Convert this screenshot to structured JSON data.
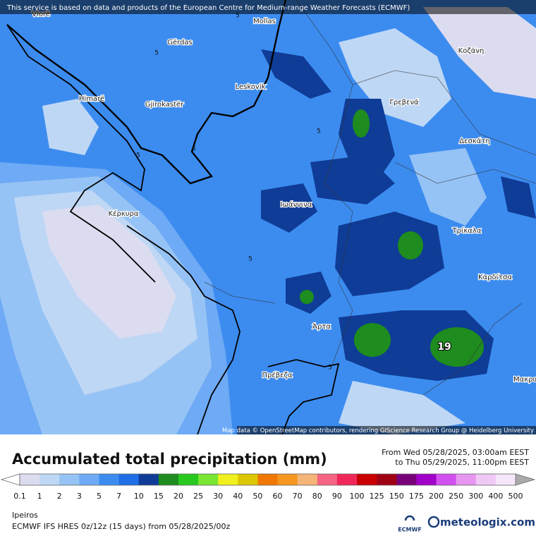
{
  "header": {
    "notice": "This service is based on data and products of the European Centre for Medium-range Weather Forecasts (ECMWF)"
  },
  "map": {
    "places": [
      {
        "label": "Vlorë"
      },
      {
        "label": "Mollas"
      },
      {
        "label": "Gërdas"
      },
      {
        "label": "Leskovik"
      },
      {
        "label": "Himarë"
      },
      {
        "label": "Gjirokastër"
      },
      {
        "label": "Κοζάνη"
      },
      {
        "label": "Γρεβενά"
      },
      {
        "label": "Δεσκάτη"
      },
      {
        "label": "Ιωάννινα"
      },
      {
        "label": "Κέρκυρα"
      },
      {
        "label": "Τρίκαλα"
      },
      {
        "label": "Καρδίτσα"
      },
      {
        "label": "Άρτα"
      },
      {
        "label": "Πρέβεζα"
      },
      {
        "label": "Μακρα"
      }
    ],
    "contour_labels": [
      "5",
      "5",
      "5",
      "5",
      "5",
      "5",
      "5",
      "19"
    ],
    "attribution": "Map data © OpenStreetMap contributors, rendering GIScience Research Group @ Heidelberg University"
  },
  "legend": {
    "title": "Accumulated total precipitation (mm)",
    "from": "From Wed 05/28/2025, 03:00am EEST",
    "to": "to Thu 05/29/2025, 11:00pm EEST",
    "levels": [
      "0.1",
      "1",
      "2",
      "3",
      "5",
      "7",
      "10",
      "15",
      "20",
      "25",
      "30",
      "40",
      "50",
      "60",
      "70",
      "80",
      "90",
      "100",
      "125",
      "150",
      "175",
      "200",
      "250",
      "300",
      "400",
      "500"
    ],
    "colors": [
      "#dcdcf0",
      "#bed7f5",
      "#96c3f5",
      "#6eaaf5",
      "#3c8cf0",
      "#1e6ee6",
      "#0f3c96",
      "#1e8c1e",
      "#28c81e",
      "#78e632",
      "#f0f01e",
      "#dcc800",
      "#f07800",
      "#f5961e",
      "#f5b478",
      "#f56482",
      "#f0285a",
      "#c80000",
      "#a00014",
      "#780078",
      "#a000c8",
      "#d250f0",
      "#e696f0",
      "#f0c8f5",
      "#f5e6fa"
    ],
    "below_color": "#ffffff",
    "above_color": "#aaaaaa"
  },
  "footer": {
    "region": "Ipeiros",
    "model": "ECMWF IFS HRES 0z/12z (15 days) from  05/28/2025/00z",
    "ecmwf_logo": "ECMWF",
    "brand": "meteologix.com"
  }
}
